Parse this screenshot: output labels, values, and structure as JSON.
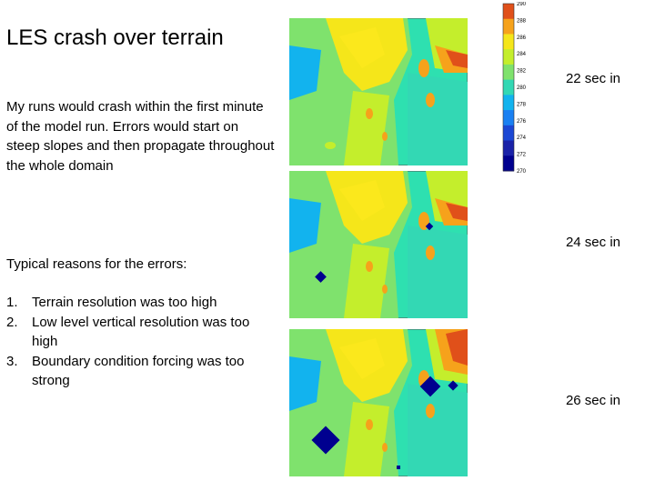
{
  "slide": {
    "title": "LES crash over terrain",
    "intro": "My runs would crash within the first minute of the model run. Errors would start on steep slopes and then propagate throughout the whole domain",
    "reasons_heading": "Typical reasons for the errors:",
    "reasons": [
      {
        "num": "1.",
        "text": "Terrain resolution was too high"
      },
      {
        "num": "2.",
        "text": "Low level vertical resolution was too high"
      },
      {
        "num": "3.",
        "text": "Boundary condition forcing was too strong"
      }
    ]
  },
  "panels": [
    {
      "label": "22 sec in"
    },
    {
      "label": "24 sec in"
    },
    {
      "label": "26 sec in"
    }
  ],
  "colorbar": {
    "ticks": [
      "290",
      "288",
      "286",
      "284",
      "282",
      "280",
      "278",
      "276",
      "274",
      "272",
      "270"
    ],
    "colors": [
      "#e0501a",
      "#f6a21b",
      "#f5e61a",
      "#c4ee2c",
      "#7fe26d",
      "#33d8b4",
      "#12b3ee",
      "#1a80f2",
      "#1b47d4",
      "#1a22a8",
      "#00008f"
    ]
  }
}
